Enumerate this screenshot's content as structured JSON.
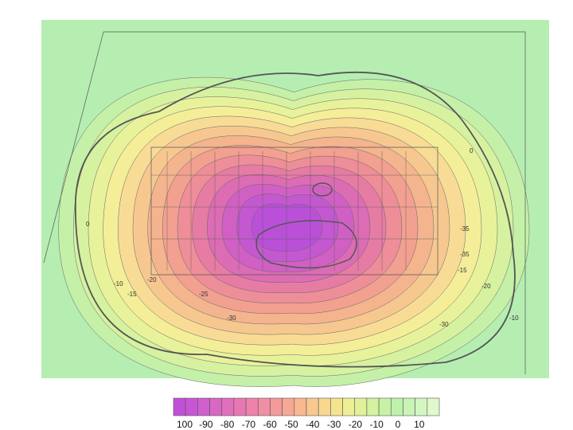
{
  "legend": {
    "labels": [
      "100",
      "-90",
      "-80",
      "-70",
      "-60",
      "-50",
      "-40",
      "-30",
      "-20",
      "-10",
      "0",
      "10"
    ]
  },
  "contour_labels": [
    "0",
    "-10",
    "-15",
    "-20",
    "-25",
    "-30",
    "-35",
    "-35",
    "-30",
    "-10",
    "-20",
    "-15",
    "0"
  ]
}
